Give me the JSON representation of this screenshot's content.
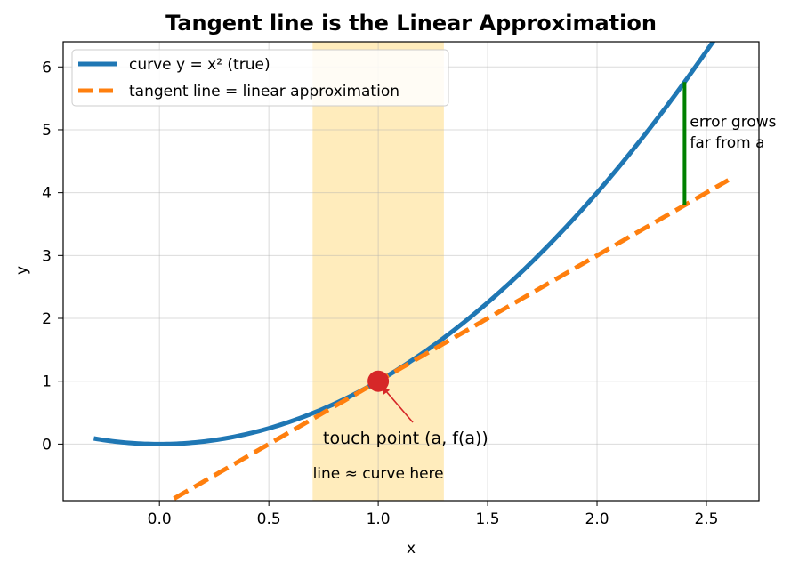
{
  "chart_data": {
    "type": "line",
    "title": "Tangent line is the Linear Approximation",
    "xlabel": "x",
    "ylabel": "y",
    "xlim": [
      -0.44,
      2.74
    ],
    "ylim": [
      -0.9,
      6.4
    ],
    "xticks": [
      0.0,
      0.5,
      1.0,
      1.5,
      2.0,
      2.5
    ],
    "yticks": [
      0,
      1,
      2,
      3,
      4,
      5,
      6
    ],
    "xtick_labels": [
      "0.0",
      "0.5",
      "1.0",
      "1.5",
      "2.0",
      "2.5"
    ],
    "ytick_labels": [
      "0",
      "1",
      "2",
      "3",
      "4",
      "5",
      "6"
    ],
    "grid": true,
    "legend_position": "top-left",
    "series": [
      {
        "name": "curve  y = x²  (true)",
        "function": "x^2",
        "x_range": [
          -0.3,
          2.6
        ],
        "color": "#1f77b4",
        "style": "solid"
      },
      {
        "name": "tangent line = linear approximation",
        "function": "2x - 1",
        "x_range": [
          -0.3,
          2.6
        ],
        "color": "#ff7f0e",
        "style": "dashed"
      }
    ],
    "touch_point": {
      "x": 1.0,
      "y": 1.0,
      "color": "#d62728"
    },
    "highlight_band": {
      "x": [
        0.7,
        1.3
      ],
      "color": "#ffe9b0"
    },
    "error_bar": {
      "x": 2.4,
      "y": [
        3.8,
        5.76
      ],
      "color": "#008000"
    },
    "annotations": {
      "touch_point_label": "touch point  (a, f(a))",
      "band_label": "line ≈ curve here",
      "band_label_color": "#8a6d00",
      "error_label_line1": "error grows",
      "error_label_line2": "far from a",
      "error_label_color": "#008000"
    }
  }
}
